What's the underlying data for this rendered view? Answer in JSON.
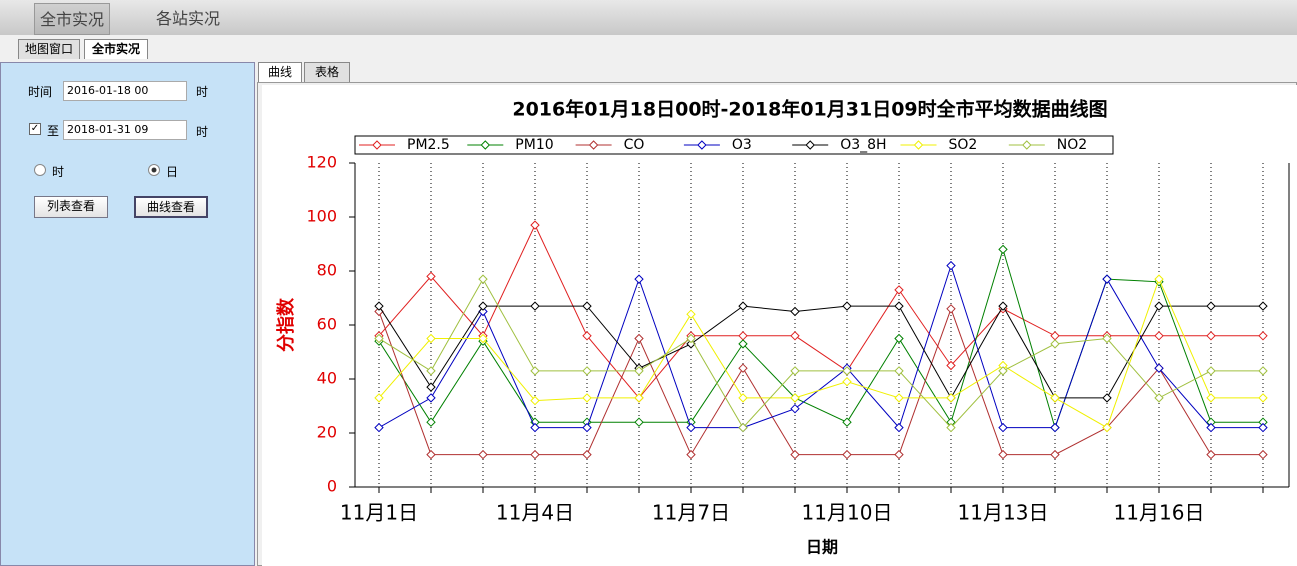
{
  "ui": {
    "tabs": [
      "全市实况",
      "各站实况"
    ],
    "subtabs": [
      "地图窗口",
      "全市实况"
    ],
    "form": {
      "time_label": "时间",
      "start": "2016-01-18 00",
      "unit_start": "时",
      "to_label": "至",
      "end": "2018-01-31 09",
      "unit_end": "时",
      "radios": [
        "时",
        "日"
      ],
      "buttons": [
        "列表查看",
        "曲线查看"
      ]
    },
    "chart_tabs": [
      "曲线",
      "表格"
    ]
  },
  "chart_data": {
    "type": "line",
    "title": "2016年01月18日00时-2018年01月31日09时全市平均数据曲线图",
    "xlabel": "日期",
    "ylabel": "分指数",
    "categories": [
      "11月1日",
      null,
      null,
      "11月4日",
      null,
      null,
      "11月7日",
      null,
      null,
      "11月10日",
      null,
      null,
      "11月13日",
      null,
      null,
      "11月16日",
      null,
      null
    ],
    "ylim": [
      0,
      120
    ],
    "yticks": [
      0,
      20,
      40,
      60,
      80,
      100,
      120
    ],
    "grid": true,
    "series": [
      {
        "name": "PM2.5",
        "color": "#e02020",
        "values": [
          56,
          78,
          56,
          97,
          56,
          33,
          56,
          56,
          56,
          43,
          73,
          45,
          66,
          56,
          56,
          56,
          56,
          56
        ]
      },
      {
        "name": "PM10",
        "color": "#008000",
        "values": [
          54,
          24,
          54,
          24,
          24,
          24,
          24,
          53,
          33,
          24,
          55,
          24,
          88,
          22,
          77,
          76,
          24,
          24
        ]
      },
      {
        "name": "CO",
        "color": "#b03030",
        "values": [
          65,
          12,
          12,
          12,
          12,
          55,
          12,
          44,
          12,
          12,
          12,
          66,
          12,
          12,
          22,
          44,
          12,
          12
        ]
      },
      {
        "name": "O3",
        "color": "#0000c0",
        "values": [
          22,
          33,
          65,
          22,
          22,
          77,
          22,
          22,
          29,
          44,
          22,
          82,
          22,
          22,
          77,
          44,
          22,
          22
        ]
      },
      {
        "name": "O3_8H",
        "color": "#000000",
        "values": [
          67,
          37,
          67,
          67,
          67,
          44,
          53,
          67,
          65,
          67,
          67,
          33,
          67,
          33,
          33,
          67,
          67,
          67
        ]
      },
      {
        "name": "SO2",
        "color": "#f0f000",
        "values": [
          33,
          55,
          55,
          32,
          33,
          33,
          64,
          33,
          33,
          39,
          33,
          33,
          45,
          33,
          22,
          77,
          33,
          33
        ]
      },
      {
        "name": "NO2",
        "color": "#a0c040",
        "values": [
          55,
          43,
          77,
          43,
          43,
          43,
          55,
          22,
          43,
          43,
          43,
          22,
          43,
          53,
          55,
          33,
          43,
          43
        ]
      }
    ]
  }
}
